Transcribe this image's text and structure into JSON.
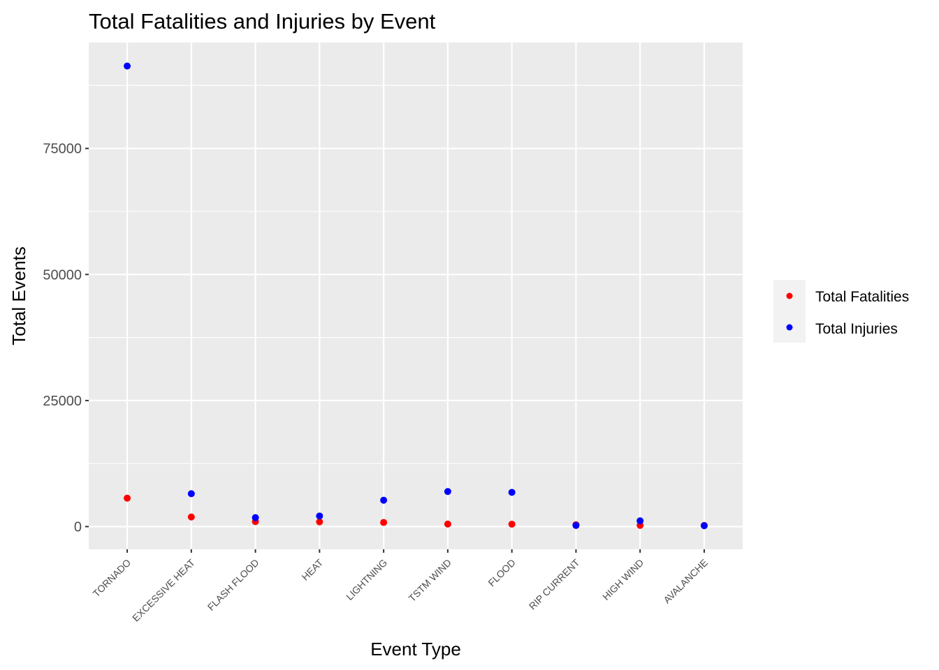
{
  "chart_data": {
    "type": "scatter",
    "title": "Total Fatalities and Injuries by Event",
    "xlabel": "Event Type",
    "ylabel": "Total Events",
    "categories": [
      "TORNADO",
      "EXCESSIVE HEAT",
      "FLASH FLOOD",
      "HEAT",
      "LIGHTNING",
      "TSTM WIND",
      "FLOOD",
      "RIP CURRENT",
      "HIGH WIND",
      "AVALANCHE"
    ],
    "series": [
      {
        "name": "Total Fatalities",
        "color": "#ff0000",
        "values": [
          5633,
          1903,
          978,
          937,
          816,
          504,
          470,
          368,
          248,
          224
        ]
      },
      {
        "name": "Total Injuries",
        "color": "#0000ff",
        "values": [
          91346,
          6525,
          1777,
          2100,
          5230,
          6957,
          6789,
          232,
          1137,
          170
        ]
      }
    ],
    "ylim": [
      -4500,
      96000
    ],
    "yticks": [
      0,
      25000,
      50000,
      75000
    ],
    "ytick_labels": [
      "0",
      "25000",
      "50000",
      "75000"
    ],
    "grid": true,
    "legend_position": "right",
    "panel_color": "#ebebeb",
    "grid_color": "#ffffff"
  }
}
